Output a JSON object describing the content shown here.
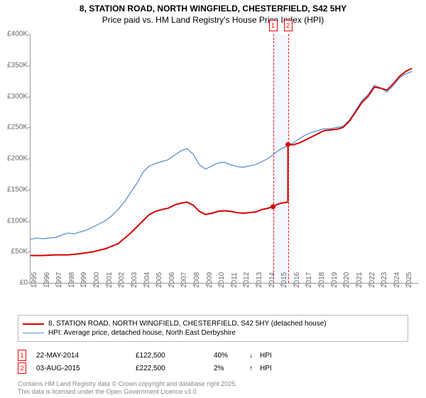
{
  "title": "8, STATION ROAD, NORTH WINGFIELD, CHESTERFIELD, S42 5HY",
  "subtitle": "Price paid vs. HM Land Registry's House Price Index (HPI)",
  "chart": {
    "type": "line",
    "background_color": "#ffffff",
    "ylim": [
      0,
      400000
    ],
    "ytick_step": 50000,
    "yticks": [
      "£0",
      "£50K",
      "£100K",
      "£150K",
      "£200K",
      "£250K",
      "£300K",
      "£350K",
      "£400K"
    ],
    "xlim_years": [
      1995,
      2026
    ],
    "xticks": [
      "1995",
      "1996",
      "1997",
      "1998",
      "1999",
      "2000",
      "2001",
      "2002",
      "2003",
      "2004",
      "2005",
      "2006",
      "2007",
      "2008",
      "2009",
      "2010",
      "2011",
      "2012",
      "2013",
      "2014",
      "2015",
      "2016",
      "2017",
      "2018",
      "2019",
      "2020",
      "2021",
      "2022",
      "2023",
      "2024",
      "2025"
    ],
    "colors": {
      "price": "#d50000",
      "hpi": "#5b8fd6",
      "marker_border": "#d50000"
    },
    "line_width": {
      "price": 2,
      "hpi": 1.3
    },
    "series": {
      "price_paid": [
        [
          1995.0,
          44000
        ],
        [
          1996.0,
          44000
        ],
        [
          1997.0,
          45000
        ],
        [
          1998.0,
          45000
        ],
        [
          1999.0,
          47000
        ],
        [
          2000.0,
          50000
        ],
        [
          2001.0,
          55000
        ],
        [
          2002.0,
          63000
        ],
        [
          2003.0,
          80000
        ],
        [
          2004.0,
          100000
        ],
        [
          2004.5,
          110000
        ],
        [
          2005.0,
          115000
        ],
        [
          2005.5,
          118000
        ],
        [
          2006.0,
          120000
        ],
        [
          2006.5,
          125000
        ],
        [
          2007.0,
          128000
        ],
        [
          2007.5,
          130000
        ],
        [
          2008.0,
          125000
        ],
        [
          2008.5,
          115000
        ],
        [
          2009.0,
          110000
        ],
        [
          2009.5,
          112000
        ],
        [
          2010.0,
          115000
        ],
        [
          2010.5,
          116000
        ],
        [
          2011.0,
          115000
        ],
        [
          2011.5,
          113000
        ],
        [
          2012.0,
          112000
        ],
        [
          2012.5,
          113000
        ],
        [
          2013.0,
          114000
        ],
        [
          2013.5,
          118000
        ],
        [
          2014.0,
          120000
        ],
        [
          2014.39,
          122500
        ],
        [
          2014.4,
          122500
        ],
        [
          2014.6,
          125000
        ],
        [
          2015.0,
          128000
        ],
        [
          2015.58,
          130000
        ],
        [
          2015.59,
          222500
        ],
        [
          2016.0,
          222000
        ],
        [
          2016.5,
          225000
        ],
        [
          2017.0,
          230000
        ],
        [
          2017.5,
          235000
        ],
        [
          2018.0,
          240000
        ],
        [
          2018.5,
          245000
        ],
        [
          2019.0,
          246000
        ],
        [
          2019.5,
          247000
        ],
        [
          2020.0,
          250000
        ],
        [
          2020.5,
          260000
        ],
        [
          2021.0,
          275000
        ],
        [
          2021.5,
          290000
        ],
        [
          2022.0,
          300000
        ],
        [
          2022.5,
          315000
        ],
        [
          2023.0,
          313000
        ],
        [
          2023.5,
          310000
        ],
        [
          2024.0,
          320000
        ],
        [
          2024.5,
          332000
        ],
        [
          2025.0,
          340000
        ],
        [
          2025.5,
          345000
        ]
      ],
      "hpi": [
        [
          1995.0,
          70000
        ],
        [
          1995.5,
          72000
        ],
        [
          1996.0,
          71000
        ],
        [
          1996.5,
          72000
        ],
        [
          1997.0,
          73000
        ],
        [
          1997.5,
          77000
        ],
        [
          1998.0,
          80000
        ],
        [
          1998.5,
          79000
        ],
        [
          1999.0,
          82000
        ],
        [
          1999.5,
          85000
        ],
        [
          2000.0,
          90000
        ],
        [
          2000.5,
          95000
        ],
        [
          2001.0,
          100000
        ],
        [
          2001.5,
          108000
        ],
        [
          2002.0,
          118000
        ],
        [
          2002.5,
          130000
        ],
        [
          2003.0,
          145000
        ],
        [
          2003.5,
          160000
        ],
        [
          2004.0,
          178000
        ],
        [
          2004.5,
          188000
        ],
        [
          2005.0,
          192000
        ],
        [
          2005.5,
          195000
        ],
        [
          2006.0,
          198000
        ],
        [
          2006.5,
          205000
        ],
        [
          2007.0,
          212000
        ],
        [
          2007.5,
          216000
        ],
        [
          2008.0,
          207000
        ],
        [
          2008.5,
          190000
        ],
        [
          2009.0,
          183000
        ],
        [
          2009.5,
          188000
        ],
        [
          2010.0,
          193000
        ],
        [
          2010.5,
          194000
        ],
        [
          2011.0,
          190000
        ],
        [
          2011.5,
          187000
        ],
        [
          2012.0,
          186000
        ],
        [
          2012.5,
          188000
        ],
        [
          2013.0,
          190000
        ],
        [
          2013.5,
          195000
        ],
        [
          2014.0,
          200000
        ],
        [
          2014.5,
          208000
        ],
        [
          2015.0,
          215000
        ],
        [
          2015.5,
          220000
        ],
        [
          2016.0,
          225000
        ],
        [
          2016.5,
          232000
        ],
        [
          2017.0,
          238000
        ],
        [
          2017.5,
          242000
        ],
        [
          2018.0,
          245000
        ],
        [
          2018.5,
          248000
        ],
        [
          2019.0,
          248000
        ],
        [
          2019.5,
          250000
        ],
        [
          2020.0,
          252000
        ],
        [
          2020.5,
          262000
        ],
        [
          2021.0,
          277000
        ],
        [
          2021.5,
          293000
        ],
        [
          2022.0,
          303000
        ],
        [
          2022.5,
          318000
        ],
        [
          2023.0,
          313000
        ],
        [
          2023.5,
          307000
        ],
        [
          2024.0,
          317000
        ],
        [
          2024.5,
          330000
        ],
        [
          2025.0,
          336000
        ],
        [
          2025.5,
          340000
        ]
      ]
    },
    "markers": [
      {
        "label": "1",
        "year": 2014.39,
        "price": 122500
      },
      {
        "label": "2",
        "year": 2015.59,
        "price": 222500
      }
    ],
    "shade": {
      "from_year": 2014.39,
      "to_year": 2015.59
    }
  },
  "legend": {
    "items": [
      {
        "color": "#d50000",
        "label": "8, STATION ROAD, NORTH WINGFIELD, CHESTERFIELD, S42 5HY (detached house)",
        "width": 2
      },
      {
        "color": "#5b8fd6",
        "label": "HPI: Average price, detached house, North East Derbyshire",
        "width": 1.3
      }
    ]
  },
  "sales": [
    {
      "n": "1",
      "date": "22-MAY-2014",
      "price": "£122,500",
      "delta": "40%",
      "arrow": "↓",
      "suffix": "HPI"
    },
    {
      "n": "2",
      "date": "03-AUG-2015",
      "price": "£222,500",
      "delta": "2%",
      "arrow": "↑",
      "suffix": "HPI"
    }
  ],
  "attrib": {
    "line1": "Contains HM Land Registry data © Crown copyright and database right 2025.",
    "line2": "This data is licensed under the Open Government Licence v3.0."
  }
}
